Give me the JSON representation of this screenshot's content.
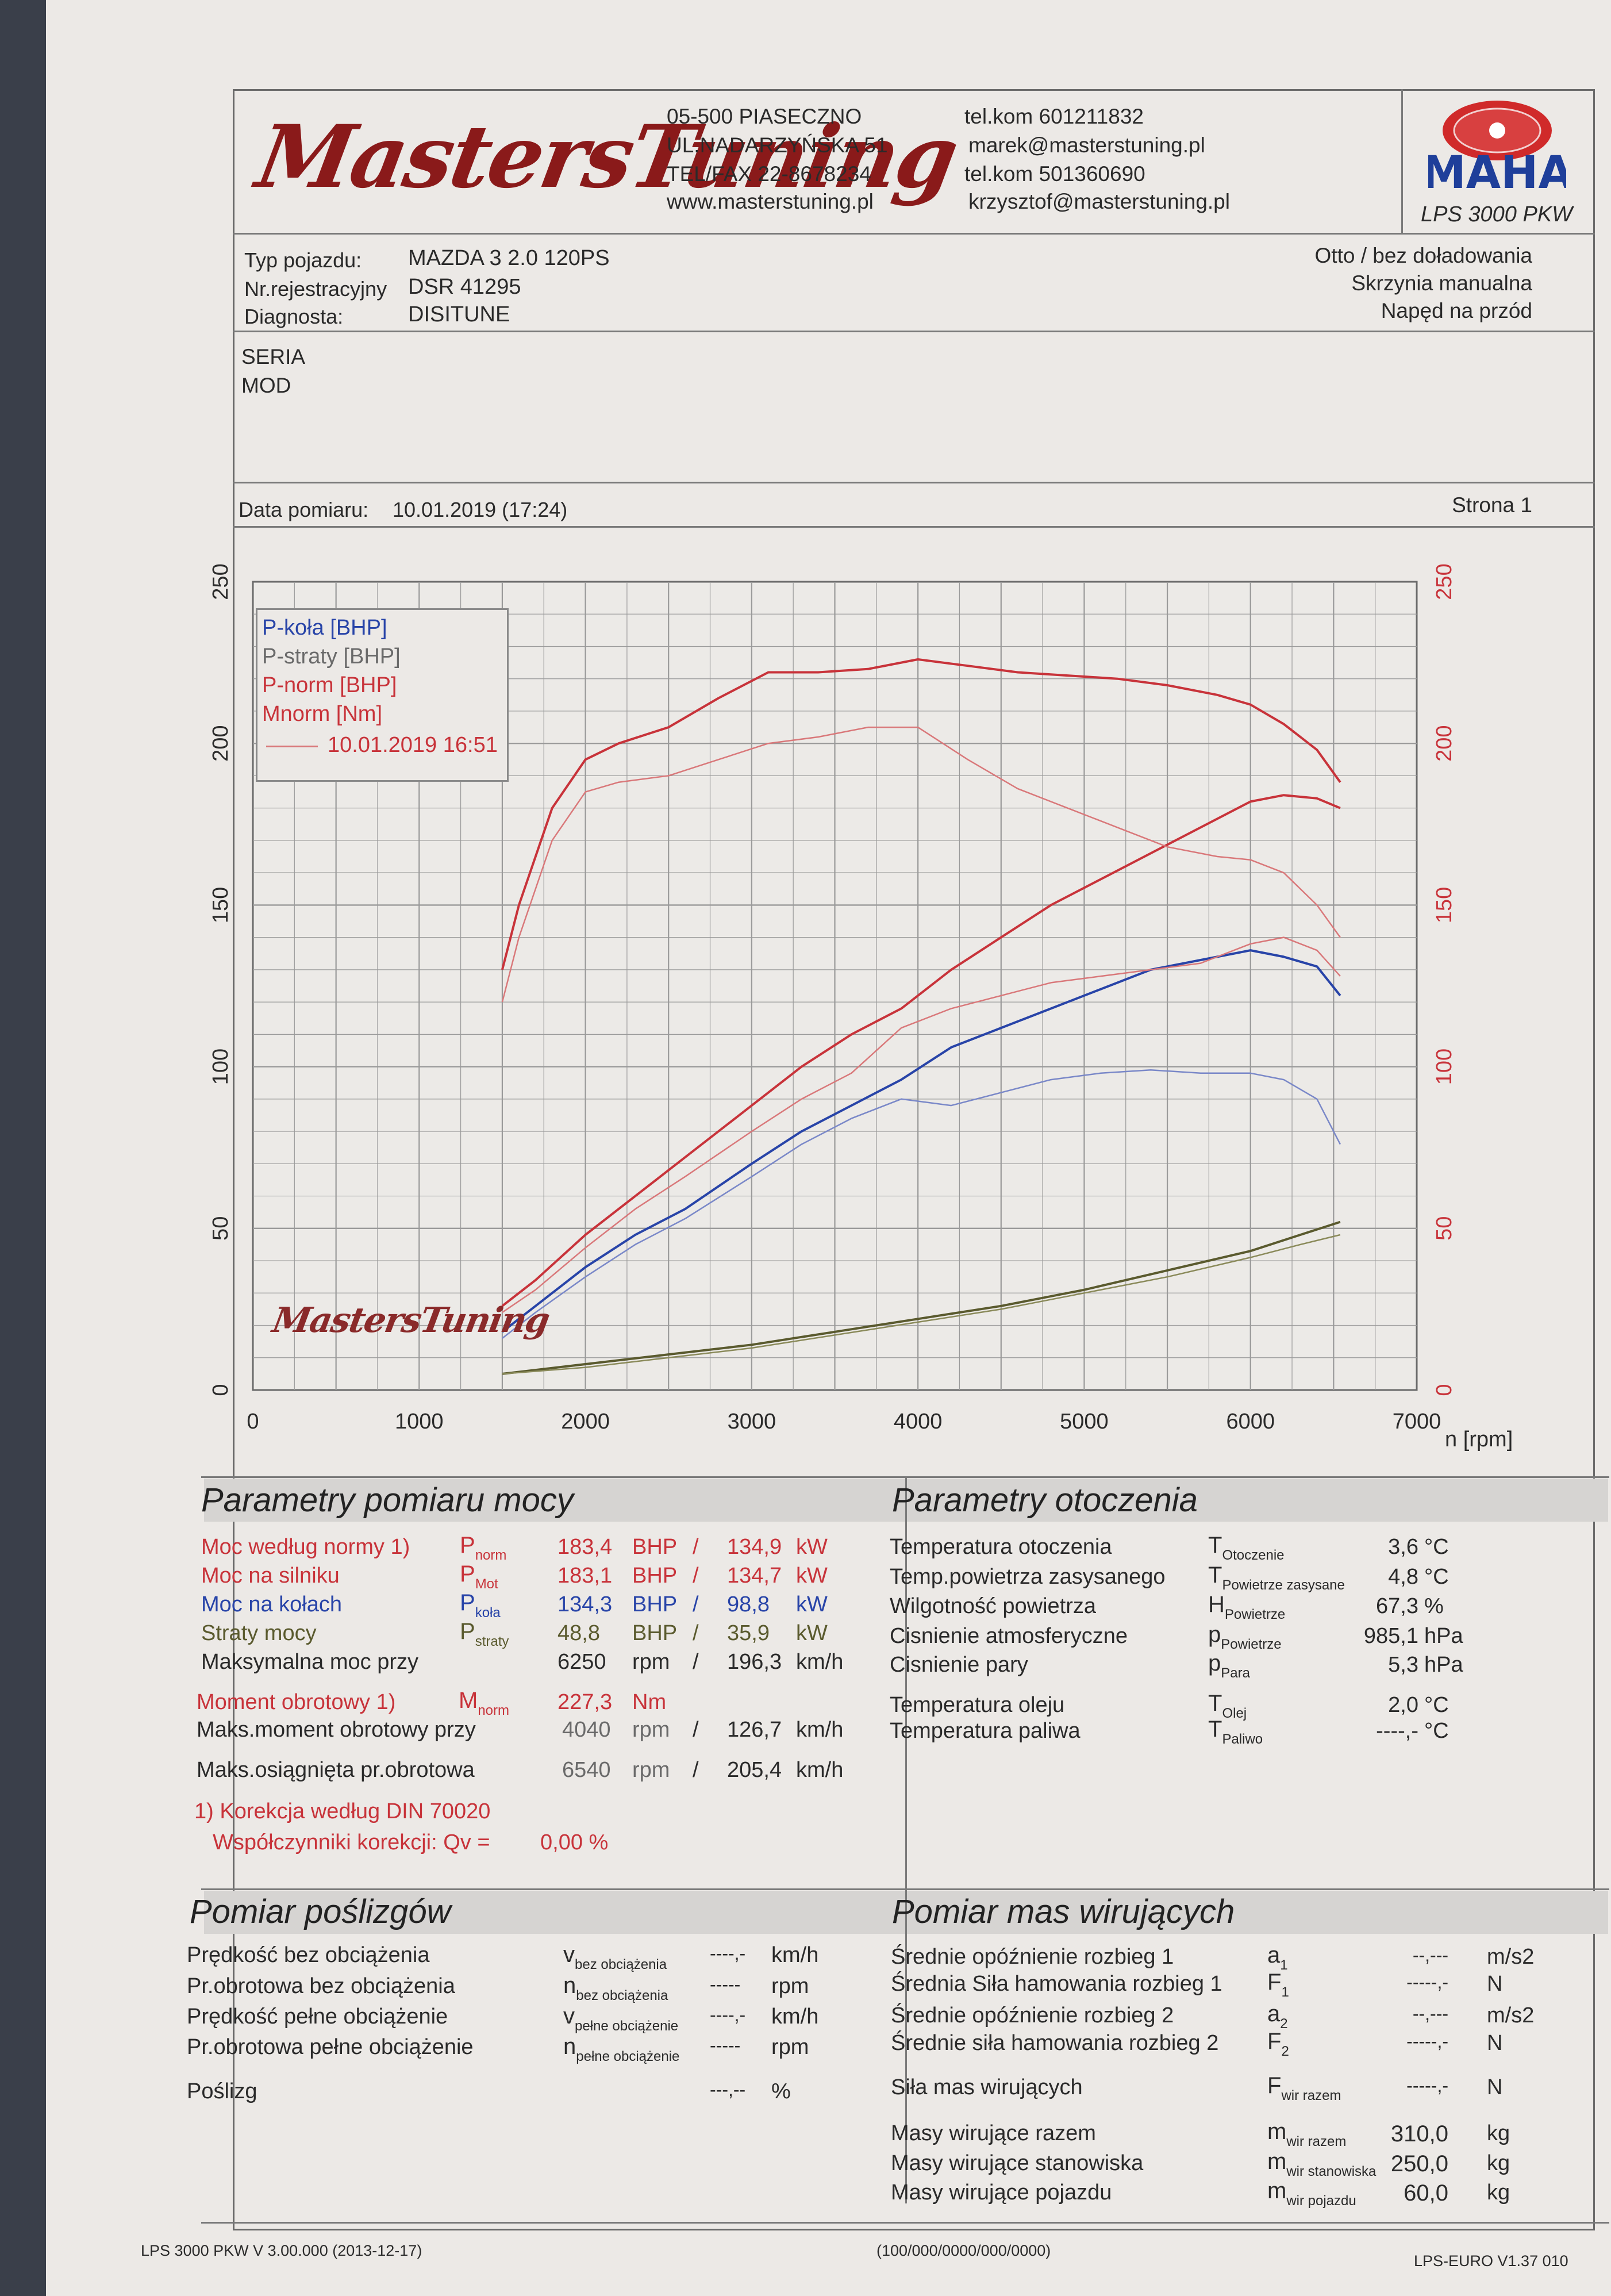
{
  "header": {
    "logo_text": "MastersTuning",
    "address": [
      "05-500 PIASECZNO",
      "UL.NADARZYŃSKA 51",
      "TEL/FAX 22-8678234",
      "www.masterstuning.pl"
    ],
    "contacts": [
      "tel.kom 601211832",
      "marek@masterstuning.pl",
      "tel.kom 501360690",
      "krzysztof@masterstuning.pl"
    ],
    "brand_logo": "MAHA",
    "device": "LPS 3000 PKW"
  },
  "vehicle": {
    "type_label": "Typ pojazdu:",
    "type_value": "MAZDA 3 2.0 120PS",
    "reg_label": "Nr.rejestracyjny",
    "reg_value": "DSR 41295",
    "diag_label": "Diagnosta:",
    "diag_value": "DISITUNE",
    "right": [
      "Otto / bez doładowania",
      "Skrzynia manualna",
      "Napęd na przód"
    ]
  },
  "notes": [
    "SERIA",
    "MOD"
  ],
  "measure": {
    "date_label": "Data pomiaru:",
    "date_value": "10.01.2019 (17:24)",
    "page": "Strona 1"
  },
  "chart_data": {
    "type": "line",
    "xlabel": "n [rpm]",
    "xlim": [
      0,
      7000
    ],
    "ylim": [
      0,
      250
    ],
    "x_ticks": [
      "0",
      "1000",
      "2000",
      "3000",
      "4000",
      "5000",
      "6000",
      "7000"
    ],
    "y_ticks": [
      "0",
      "50",
      "100",
      "150",
      "200",
      "250"
    ],
    "y_ticks_right": [
      "0",
      "50",
      "100",
      "150",
      "200",
      "250"
    ],
    "legend_placement": "top-left",
    "legend": [
      {
        "label": "P-koła [BHP]",
        "color": "#2844a8"
      },
      {
        "label": "P-straty [BHP]",
        "color": "#5a5a2e"
      },
      {
        "label": "P-norm [BHP]",
        "color": "#c8333a"
      },
      {
        "label": "Mnorm [Nm]",
        "color": "#c8333a"
      },
      {
        "label": "10.01.2019 16:51",
        "color": "#d9787a"
      }
    ],
    "series": [
      {
        "name": "P-koła [BHP]",
        "color": "#2844a8",
        "x": [
          1500,
          1700,
          2000,
          2300,
          2600,
          3000,
          3300,
          3600,
          3900,
          4200,
          4500,
          4800,
          5100,
          5400,
          5700,
          6000,
          6200,
          6400,
          6540
        ],
        "y": [
          18,
          26,
          38,
          48,
          56,
          70,
          80,
          88,
          96,
          106,
          112,
          118,
          124,
          130,
          133,
          136,
          134,
          131,
          122
        ]
      },
      {
        "name": "P-straty [BHP]",
        "color": "#5a5a2e",
        "x": [
          1500,
          2000,
          2500,
          3000,
          3500,
          4000,
          4500,
          5000,
          5500,
          6000,
          6300,
          6540
        ],
        "y": [
          5,
          8,
          11,
          14,
          18,
          22,
          26,
          31,
          37,
          43,
          48,
          52
        ]
      },
      {
        "name": "P-norm [BHP]",
        "color": "#c8333a",
        "x": [
          1500,
          1700,
          2000,
          2300,
          2600,
          3000,
          3300,
          3600,
          3900,
          4200,
          4500,
          4800,
          5100,
          5400,
          5700,
          6000,
          6200,
          6400,
          6540
        ],
        "y": [
          26,
          34,
          48,
          60,
          72,
          88,
          100,
          110,
          118,
          130,
          140,
          150,
          158,
          166,
          174,
          182,
          184,
          183,
          180
        ]
      },
      {
        "name": "Mnorm [Nm]",
        "color": "#c8333a",
        "x": [
          1500,
          1600,
          1800,
          2000,
          2200,
          2500,
          2800,
          3100,
          3400,
          3700,
          4000,
          4300,
          4600,
          4900,
          5200,
          5500,
          5800,
          6000,
          6200,
          6400,
          6540
        ],
        "y": [
          130,
          150,
          180,
          195,
          200,
          205,
          214,
          222,
          222,
          223,
          226,
          224,
          222,
          221,
          220,
          218,
          215,
          212,
          206,
          198,
          188
        ]
      },
      {
        "name": "10.01.2019 16:51",
        "color": "#d9787a",
        "x": [
          1500,
          1700,
          2000,
          2300,
          2600,
          3000,
          3300,
          3600,
          3900,
          4200,
          4500,
          4800,
          5100,
          5400,
          5700,
          6000,
          6200,
          6400,
          6540
        ],
        "y": [
          24,
          31,
          44,
          56,
          66,
          80,
          90,
          98,
          112,
          118,
          122,
          126,
          128,
          130,
          132,
          138,
          140,
          136,
          128
        ]
      },
      {
        "name": "10.01.2019 16:51",
        "color": "#d9787a",
        "x": [
          1500,
          1600,
          1800,
          2000,
          2200,
          2500,
          2800,
          3100,
          3400,
          3700,
          4000,
          4300,
          4600,
          4900,
          5200,
          5500,
          5800,
          6000,
          6200,
          6400,
          6540
        ],
        "y": [
          120,
          140,
          170,
          185,
          188,
          190,
          195,
          200,
          202,
          205,
          205,
          195,
          186,
          180,
          174,
          168,
          165,
          164,
          160,
          150,
          140
        ]
      },
      {
        "name": "10.01.2019 16:51",
        "color": "#7a88c8",
        "x": [
          1500,
          1700,
          2000,
          2300,
          2600,
          3000,
          3300,
          3600,
          3900,
          4200,
          4500,
          4800,
          5100,
          5400,
          5700,
          6000,
          6200,
          6400,
          6540
        ],
        "y": [
          16,
          24,
          35,
          45,
          53,
          66,
          76,
          84,
          90,
          88,
          92,
          96,
          98,
          99,
          98,
          98,
          96,
          90,
          76
        ]
      },
      {
        "name": "10.01.2019 16:51",
        "color": "#8a8a5a",
        "x": [
          1500,
          2000,
          2500,
          3000,
          3500,
          4000,
          4500,
          5000,
          5500,
          6000,
          6300,
          6540
        ],
        "y": [
          5,
          7,
          10,
          13,
          17,
          21,
          25,
          30,
          35,
          41,
          45,
          48
        ]
      }
    ],
    "watermark": "MastersTuning"
  },
  "power": {
    "title": "Parametry pomiaru mocy",
    "rows": [
      {
        "label": "Moc według normy 1)",
        "sym": "Pnorm",
        "v1": "183,4",
        "u1": "BHP",
        "sep": "/",
        "v2": "134,9",
        "u2": "kW",
        "color": "red"
      },
      {
        "label": "Moc na silniku",
        "sym": "PMot",
        "v1": "183,1",
        "u1": "BHP",
        "sep": "/",
        "v2": "134,7",
        "u2": "kW",
        "color": "red"
      },
      {
        "label": "Moc na kołach",
        "sym": "Pkoła",
        "v1": "134,3",
        "u1": "BHP",
        "sep": "/",
        "v2": "98,8",
        "u2": "kW",
        "color": "blue"
      },
      {
        "label": "Straty mocy",
        "sym": "Pstraty",
        "v1": "48,8",
        "u1": "BHP",
        "sep": "/",
        "v2": "35,9",
        "u2": "kW",
        "color": "olive"
      },
      {
        "label": "Maksymalna moc przy",
        "sym": "",
        "v1": "6250",
        "u1": "rpm",
        "sep": "/",
        "v2": "196,3",
        "u2": "km/h",
        "color": "black"
      }
    ],
    "torque": {
      "label": "Moment obrotowy 1)",
      "sym": "Mnorm",
      "value": "227,3",
      "unit": "Nm"
    },
    "torque_rpm": {
      "label": "Maks.moment obrotowy przy",
      "v1": "4040",
      "u1": "rpm",
      "sep": "/",
      "v2": "126,7",
      "u2": "km/h"
    },
    "max_rpm": {
      "label": "Maks.osiągnięta pr.obrotowa",
      "v1": "6540",
      "u1": "rpm",
      "sep": "/",
      "v2": "205,4",
      "u2": "km/h"
    },
    "correction": "1) Korekcja według DIN 70020",
    "coeff_label": "Współczynniki korekcji: Qv =",
    "coeff_value": "0,00 %"
  },
  "env": {
    "title": "Parametry otoczenia",
    "rows": [
      {
        "label": "Temperatura otoczenia",
        "sym": "TOtoczenie",
        "value": "3,6",
        "unit": "°C"
      },
      {
        "label": "Temp.powietrza zasysanego",
        "sym": "TPowietrze zasysane",
        "value": "4,8",
        "unit": "°C"
      },
      {
        "label": "Wilgotność powietrza",
        "sym": "HPowietrze",
        "value": "67,3",
        "unit": "%"
      },
      {
        "label": "Cisnienie atmosferyczne",
        "sym": "pPowietrze",
        "value": "985,1",
        "unit": "hPa"
      },
      {
        "label": "Cisnienie pary",
        "sym": "pPara",
        "value": "5,3",
        "unit": "hPa"
      },
      {
        "label": "Temperatura oleju",
        "sym": "TOlej",
        "value": "2,0",
        "unit": "°C"
      },
      {
        "label": "Temperatura paliwa",
        "sym": "TPaliwo",
        "value": "----,-",
        "unit": "°C"
      }
    ]
  },
  "slip": {
    "title": "Pomiar poślizgów",
    "rows": [
      {
        "label": "Prędkość bez obciążenia",
        "sym": "vbez obciążenia",
        "value": "----,-",
        "unit": "km/h"
      },
      {
        "label": "Pr.obrotowa bez obciążenia",
        "sym": "nbez obciążenia",
        "value": "-----",
        "unit": "rpm"
      },
      {
        "label": "Prędkość pełne obciążenie",
        "sym": "vpełne obciążenie",
        "value": "----,-",
        "unit": "km/h"
      },
      {
        "label": "Pr.obrotowa pełne obciążenie",
        "sym": "npełne obciążenie",
        "value": "-----",
        "unit": "rpm"
      },
      {
        "label": "Poślizg",
        "sym": "",
        "value": "---,--",
        "unit": "%"
      }
    ]
  },
  "masses": {
    "title": "Pomiar mas wirujących",
    "rows": [
      {
        "label": "Średnie opóźnienie rozbieg 1",
        "sym": "a1",
        "value": "--,---",
        "unit": "m/s2"
      },
      {
        "label": "Średnia Siła hamowania rozbieg 1",
        "sym": "F1",
        "value": "-----,-",
        "unit": "N"
      },
      {
        "label": "Średnie opóźnienie rozbieg 2",
        "sym": "a2",
        "value": "--,---",
        "unit": "m/s2"
      },
      {
        "label": "Średnie siła hamowania rozbieg 2",
        "sym": "F2",
        "value": "-----,-",
        "unit": "N"
      },
      {
        "label": "Siła mas wirujących",
        "sym": "Fwir razem",
        "value": "-----,-",
        "unit": "N"
      },
      {
        "label": "Masy wirujące razem",
        "sym": "mwir razem",
        "value": "310,0",
        "unit": "kg"
      },
      {
        "label": "Masy wirujące stanowiska",
        "sym": "mwir stanowiska",
        "value": "250,0",
        "unit": "kg"
      },
      {
        "label": "Masy wirujące pojazdu",
        "sym": "mwir pojazdu",
        "value": "60,0",
        "unit": "kg"
      }
    ]
  },
  "footer": {
    "left": "LPS 3000 PKW V 3.00.000 (2013-12-17)",
    "center": "(100/000/0000/000/0000)",
    "right": "LPS-EURO V1.37 010"
  }
}
